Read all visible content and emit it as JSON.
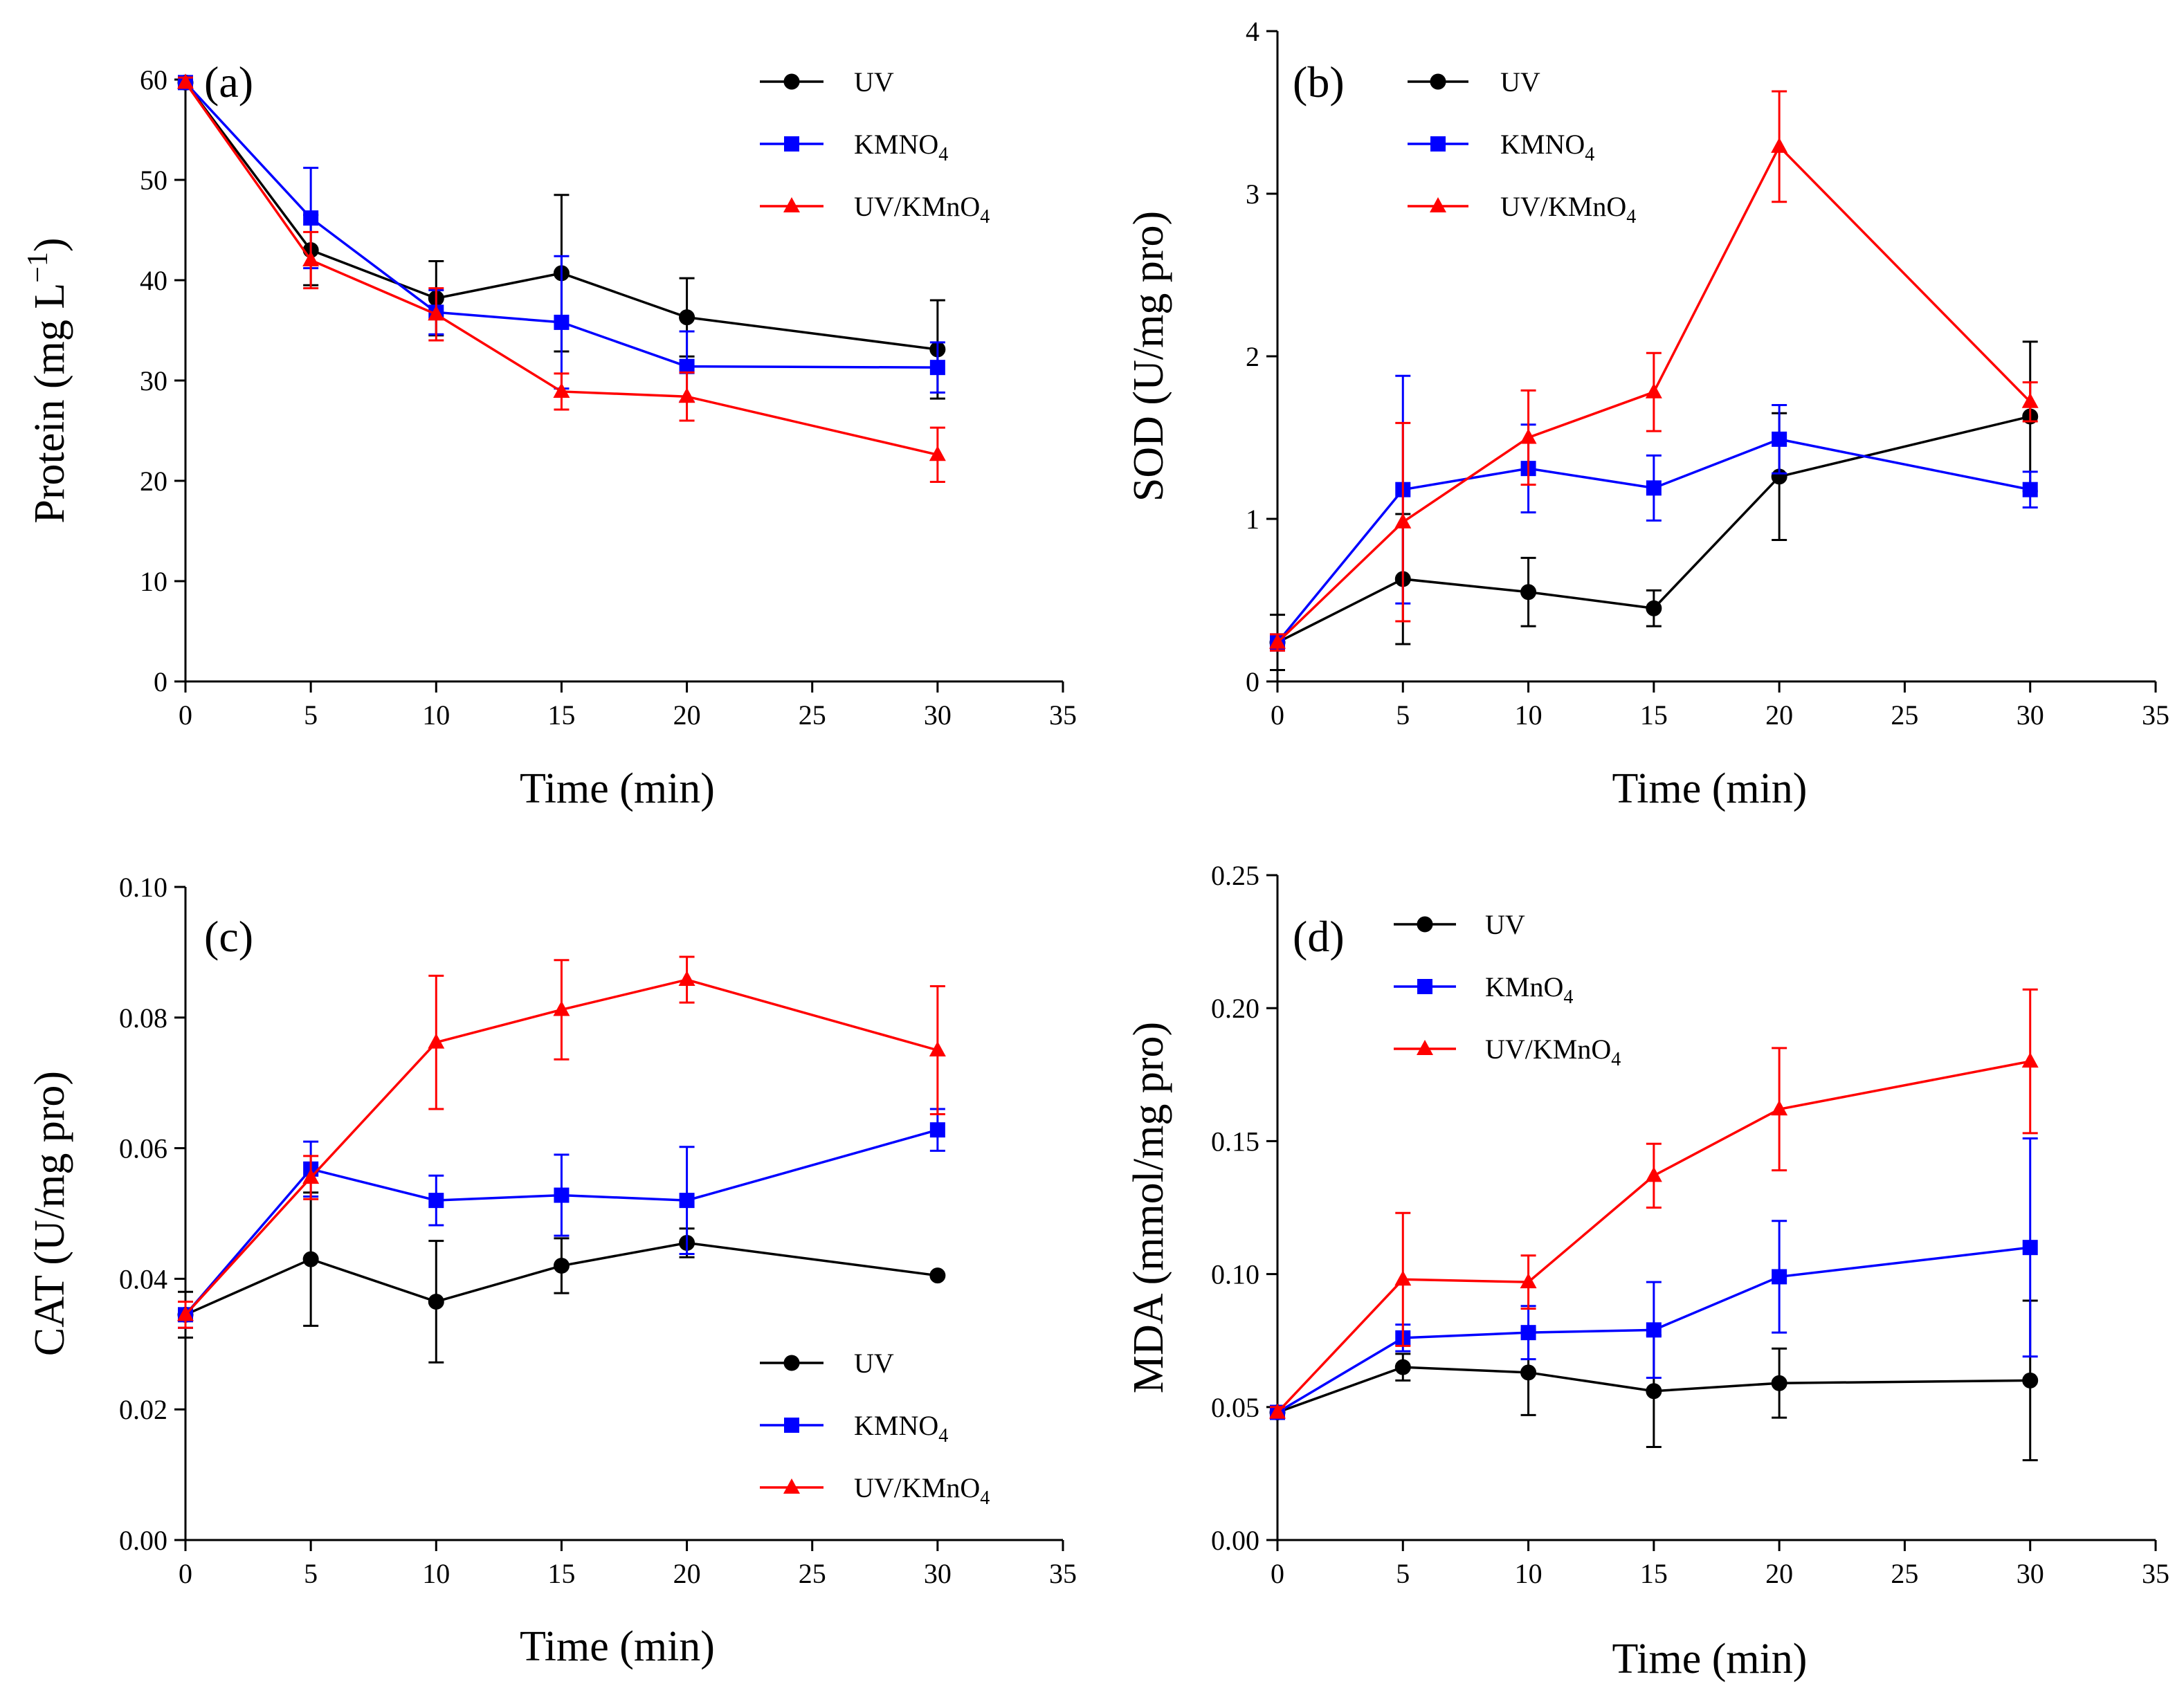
{
  "chart_data": [
    {
      "id": "a",
      "type": "line",
      "panel_label": "(a)",
      "xlabel": "Time (min)",
      "ylabel": "Protein (mg L",
      "ylabel_sup": "−1",
      "ylabel_suffix": ")",
      "xlim": [
        0,
        35
      ],
      "ylim": [
        0,
        60
      ],
      "xticks": [
        0,
        5,
        10,
        15,
        20,
        25,
        30,
        35
      ],
      "yticks": [
        0,
        10,
        20,
        30,
        40,
        50,
        60
      ],
      "yticklabels": [
        "0",
        "10",
        "20",
        "30",
        "40",
        "50",
        "60"
      ],
      "legend_position": "top-right",
      "series": [
        {
          "name": "UV",
          "label_main": "UV",
          "label_sub": "",
          "label_tail": "",
          "color": "#000000",
          "marker": "circle",
          "x": [
            0,
            5,
            10,
            15,
            20,
            30
          ],
          "y": [
            59.7,
            43,
            38.2,
            40.7,
            36.3,
            33.1
          ],
          "err": [
            0.5,
            3.5,
            3.7,
            7.8,
            3.9,
            4.9
          ]
        },
        {
          "name": "KMNO4",
          "label_main": "KMNO",
          "label_sub": "4",
          "label_tail": "",
          "color": "#0000ff",
          "marker": "square",
          "x": [
            0,
            5,
            10,
            15,
            20,
            30
          ],
          "y": [
            59.7,
            46.2,
            36.8,
            35.8,
            31.4,
            31.3
          ],
          "err": [
            0.5,
            5,
            2.2,
            6.6,
            3.5,
            2.5
          ]
        },
        {
          "name": "UV/KMnO4",
          "label_main": "UV/KMnO",
          "label_sub": "4",
          "label_tail": "",
          "color": "#ff0000",
          "marker": "triangle",
          "x": [
            0,
            5,
            10,
            15,
            20,
            30
          ],
          "y": [
            59.7,
            42,
            36.6,
            28.9,
            28.4,
            22.6
          ],
          "err": [
            0.5,
            2.8,
            2.6,
            1.8,
            2.4,
            2.7
          ]
        }
      ]
    },
    {
      "id": "b",
      "type": "line",
      "panel_label": "(b)",
      "xlabel": "Time (min)",
      "ylabel": "SOD (U/mg pro)",
      "ylabel_sup": "",
      "ylabel_suffix": "",
      "xlim": [
        0,
        35
      ],
      "ylim": [
        0,
        4
      ],
      "xticks": [
        0,
        5,
        10,
        15,
        20,
        25,
        30,
        35
      ],
      "yticks": [
        0,
        1,
        2,
        3,
        4
      ],
      "yticklabels": [
        "0",
        "1",
        "2",
        "3",
        "4"
      ],
      "legend_position": "top-left",
      "series": [
        {
          "name": "UV",
          "label_main": "UV",
          "label_sub": "",
          "label_tail": "",
          "color": "#000000",
          "marker": "circle",
          "x": [
            0,
            5,
            10,
            15,
            20,
            30
          ],
          "y": [
            0.24,
            0.63,
            0.55,
            0.45,
            1.26,
            1.63
          ],
          "err": [
            0.17,
            0.4,
            0.21,
            0.11,
            0.39,
            0.46
          ]
        },
        {
          "name": "KMNO4",
          "label_main": "KMNO",
          "label_sub": "4",
          "label_tail": "",
          "color": "#0000ff",
          "marker": "square",
          "x": [
            0,
            5,
            10,
            15,
            20,
            30
          ],
          "y": [
            0.24,
            1.18,
            1.31,
            1.19,
            1.49,
            1.18
          ],
          "err": [
            0.05,
            0.7,
            0.27,
            0.2,
            0.21,
            0.11
          ]
        },
        {
          "name": "UV/KMnO4",
          "label_main": "UV/KMnO",
          "label_sub": "4",
          "label_tail": "",
          "color": "#ff0000",
          "marker": "triangle",
          "x": [
            0,
            5,
            10,
            15,
            20,
            30
          ],
          "y": [
            0.24,
            0.98,
            1.5,
            1.78,
            3.29,
            1.72
          ],
          "err": [
            0.05,
            0.61,
            0.29,
            0.24,
            0.34,
            0.12
          ]
        }
      ]
    },
    {
      "id": "c",
      "type": "line",
      "panel_label": "(c)",
      "xlabel": "Time (min)",
      "ylabel": "CAT (U/mg pro)",
      "ylabel_sup": "",
      "ylabel_suffix": "",
      "xlim": [
        0,
        35
      ],
      "ylim": [
        0,
        0.1
      ],
      "xticks": [
        0,
        5,
        10,
        15,
        20,
        25,
        30,
        35
      ],
      "yticks": [
        0,
        0.02,
        0.04,
        0.06,
        0.08,
        0.1
      ],
      "yticklabels": [
        "0.00",
        "0.02",
        "0.04",
        "0.06",
        "0.08",
        "0.10"
      ],
      "legend_position": "bottom-right",
      "series": [
        {
          "name": "UV",
          "label_main": "UV",
          "label_sub": "",
          "label_tail": "",
          "color": "#000000",
          "marker": "circle",
          "x": [
            0,
            5,
            10,
            15,
            20,
            30
          ],
          "y": [
            0.0345,
            0.043,
            0.0365,
            0.042,
            0.0455,
            0.0405
          ],
          "err": [
            0.0035,
            0.0102,
            0.0093,
            0.0042,
            0.0022,
            0
          ]
        },
        {
          "name": "KMNO4",
          "label_main": "KMNO",
          "label_sub": "4",
          "label_tail": "",
          "color": "#0000ff",
          "marker": "square",
          "x": [
            0,
            5,
            10,
            15,
            20,
            30
          ],
          "y": [
            0.0345,
            0.0568,
            0.052,
            0.0528,
            0.052,
            0.0628
          ],
          "err": [
            0.002,
            0.0042,
            0.0038,
            0.0062,
            0.0082,
            0.0032
          ]
        },
        {
          "name": "UV/KMnO4",
          "label_main": "UV/KMnO",
          "label_sub": "4",
          "label_tail": "",
          "color": "#ff0000",
          "marker": "triangle",
          "x": [
            0,
            5,
            10,
            15,
            20,
            30
          ],
          "y": [
            0.0345,
            0.0555,
            0.0762,
            0.0812,
            0.0858,
            0.075
          ],
          "err": [
            0.002,
            0.0033,
            0.0102,
            0.0076,
            0.0035,
            0.0098
          ]
        }
      ]
    },
    {
      "id": "d",
      "type": "line",
      "panel_label": "(d)",
      "xlabel": "Time (min)",
      "ylabel": "MDA (mmol/mg pro)",
      "ylabel_sup": "",
      "ylabel_suffix": "",
      "xlim": [
        0,
        35
      ],
      "ylim": [
        0,
        0.25
      ],
      "xticks": [
        0,
        5,
        10,
        15,
        20,
        25,
        30,
        35
      ],
      "yticks": [
        0,
        0.05,
        0.1,
        0.15,
        0.2,
        0.25
      ],
      "yticklabels": [
        "0.00",
        "0.05",
        "0.10",
        "0.15",
        "0.20",
        "0.25"
      ],
      "legend_position": "top-left",
      "series": [
        {
          "name": "UV",
          "label_main": "UV",
          "label_sub": "",
          "label_tail": "",
          "color": "#000000",
          "marker": "circle",
          "x": [
            0,
            5,
            10,
            15,
            20,
            30
          ],
          "y": [
            0.048,
            0.065,
            0.063,
            0.056,
            0.059,
            0.06
          ],
          "err": [
            0.002,
            0.005,
            0.016,
            0.021,
            0.013,
            0.03
          ]
        },
        {
          "name": "KMnO4",
          "label_main": "KMnO",
          "label_sub": "4",
          "label_tail": "",
          "color": "#0000ff",
          "marker": "square",
          "x": [
            0,
            5,
            10,
            15,
            20,
            30
          ],
          "y": [
            0.048,
            0.076,
            0.078,
            0.079,
            0.099,
            0.11
          ],
          "err": [
            0.002,
            0.005,
            0.01,
            0.018,
            0.021,
            0.041
          ]
        },
        {
          "name": "UV/KMnO4",
          "label_main": "UV/KMnO",
          "label_sub": "4",
          "label_tail": "",
          "color": "#ff0000",
          "marker": "triangle",
          "x": [
            0,
            5,
            10,
            15,
            20,
            30
          ],
          "y": [
            0.048,
            0.098,
            0.097,
            0.137,
            0.162,
            0.18
          ],
          "err": [
            0.002,
            0.025,
            0.01,
            0.012,
            0.023,
            0.027
          ]
        }
      ]
    }
  ]
}
